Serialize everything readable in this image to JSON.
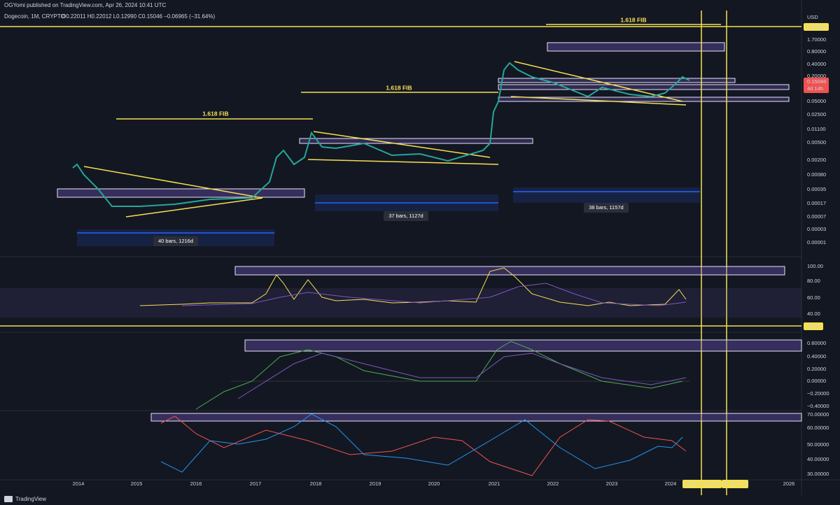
{
  "header": {
    "publisher": "OGYomi published on TradingView.com, Apr 26, 2024 10:41 UTC",
    "symbol": "Dogecoin, 1M, CRYPTO",
    "ohlc": "O0.22011 H0.22012 L0.12990 C0.15046 −0.06965 (−31.64%)"
  },
  "annotations": {
    "fib": [
      "1.618 FIB",
      "1.618 FIB",
      "1.618 FIB"
    ],
    "ranges": [
      "40 bars, 1216d",
      "37 bars, 1127d",
      "38 bars, 1157d"
    ]
  },
  "price_axis": {
    "currency": "USD",
    "highlight": "3.24545",
    "last_price": "0.15046",
    "countdown": "4d 14h",
    "labels": [
      "1.70000",
      "0.80000",
      "0.40000",
      "0.20000",
      "0.05000",
      "0.02500",
      "0.01100",
      "0.00500",
      "0.00200",
      "0.00080",
      "0.00035",
      "0.00017",
      "0.00007",
      "0.00003",
      "0.00001"
    ]
  },
  "rsi_axis": {
    "labels": [
      "100.00",
      "80.00",
      "60.00",
      "40.00"
    ],
    "highlight": "18.57"
  },
  "macd_axis": {
    "labels": [
      "0.60000",
      "0.40000",
      "0.20000",
      "0.00000",
      "−0.20000",
      "−0.40000"
    ]
  },
  "dmi_axis": {
    "labels": [
      "70.00000",
      "60.00000",
      "50.00000",
      "40.00000",
      "30.00000"
    ]
  },
  "time_axis": {
    "years": [
      "2014",
      "2015",
      "2016",
      "2017",
      "2018",
      "2019",
      "2020",
      "2021",
      "2022",
      "2023",
      "2024",
      "2026"
    ],
    "cursor_labels": [
      "Mon 01 Jul '24",
      "31 Dec '24"
    ]
  },
  "footer": {
    "brand": "TradingView"
  }
}
